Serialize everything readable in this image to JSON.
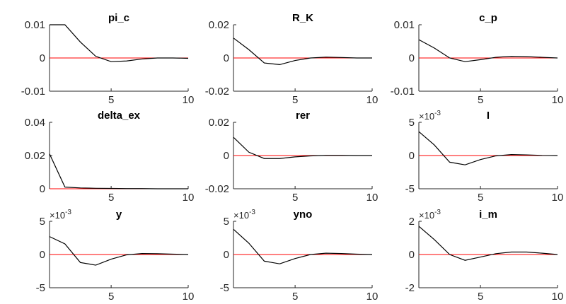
{
  "chart_data": [
    {
      "type": "line",
      "title": "pi_c",
      "x": [
        1,
        2,
        3,
        4,
        5,
        6,
        7,
        8,
        9,
        10
      ],
      "values": [
        0.01,
        0.01,
        0.0048,
        0.0005,
        -0.0011,
        -0.0009,
        -0.0003,
        0.0,
        0.0,
        -0.0001
      ],
      "color": "#000000",
      "zero_line_color": "#ff0000",
      "xlim": [
        1,
        10
      ],
      "xticks": [
        5,
        10
      ],
      "ylim": [
        -0.01,
        0.01
      ],
      "yticks": [
        -0.01,
        0,
        0.01
      ]
    },
    {
      "type": "line",
      "title": "R_K",
      "x": [
        1,
        2,
        3,
        4,
        5,
        6,
        7,
        8,
        9,
        10
      ],
      "values": [
        0.012,
        0.005,
        -0.003,
        -0.004,
        -0.0015,
        0.0,
        0.0005,
        0.0003,
        0.0,
        0.0
      ],
      "color": "#000000",
      "zero_line_color": "#ff0000",
      "xlim": [
        1,
        10
      ],
      "xticks": [
        5,
        10
      ],
      "ylim": [
        -0.02,
        0.02
      ],
      "yticks": [
        -0.02,
        0,
        0.02
      ]
    },
    {
      "type": "line",
      "title": "c_p",
      "x": [
        1,
        2,
        3,
        4,
        5,
        6,
        7,
        8,
        9,
        10
      ],
      "values": [
        0.0055,
        0.003,
        0.0,
        -0.0011,
        -0.0005,
        0.0002,
        0.0005,
        0.0004,
        0.0002,
        0.0
      ],
      "color": "#000000",
      "zero_line_color": "#ff0000",
      "xlim": [
        1,
        10
      ],
      "xticks": [
        5,
        10
      ],
      "ylim": [
        -0.01,
        0.01
      ],
      "yticks": [
        -0.01,
        0,
        0.01
      ]
    },
    {
      "type": "line",
      "title": "delta_ex",
      "x": [
        1,
        2,
        3,
        4,
        5,
        6,
        7,
        8,
        9,
        10
      ],
      "values": [
        0.021,
        0.001,
        0.0005,
        0.0003,
        0.0002,
        0.0001,
        0.0001,
        0.0,
        0.0,
        0.0
      ],
      "color": "#000000",
      "zero_line_color": "#ff0000",
      "xlim": [
        1,
        10
      ],
      "xticks": [
        5,
        10
      ],
      "ylim": [
        0,
        0.04
      ],
      "yticks": [
        0,
        0.02,
        0.04
      ]
    },
    {
      "type": "line",
      "title": "rer",
      "x": [
        1,
        2,
        3,
        4,
        5,
        6,
        7,
        8,
        9,
        10
      ],
      "values": [
        0.011,
        0.002,
        -0.0018,
        -0.0018,
        -0.0008,
        -0.0002,
        0.0001,
        0.0001,
        0.0,
        0.0
      ],
      "color": "#000000",
      "zero_line_color": "#ff0000",
      "xlim": [
        1,
        10
      ],
      "xticks": [
        5,
        10
      ],
      "ylim": [
        -0.02,
        0.02
      ],
      "yticks": [
        -0.02,
        0,
        0.02
      ]
    },
    {
      "type": "line",
      "title": "I",
      "y_multiplier": "×10",
      "y_exponent": "-3",
      "x": [
        1,
        2,
        3,
        4,
        5,
        6,
        7,
        8,
        9,
        10
      ],
      "values": [
        3.6,
        1.6,
        -1.0,
        -1.4,
        -0.6,
        -0.05,
        0.15,
        0.1,
        0.02,
        0.0
      ],
      "color": "#000000",
      "zero_line_color": "#ff0000",
      "xlim": [
        1,
        10
      ],
      "xticks": [
        5,
        10
      ],
      "ylim": [
        -5,
        5
      ],
      "yticks": [
        -5,
        0,
        5
      ]
    },
    {
      "type": "line",
      "title": "y",
      "y_multiplier": "×10",
      "y_exponent": "-3",
      "x": [
        1,
        2,
        3,
        4,
        5,
        6,
        7,
        8,
        9,
        10
      ],
      "values": [
        2.7,
        1.6,
        -1.2,
        -1.6,
        -0.7,
        -0.05,
        0.15,
        0.12,
        0.05,
        0.0
      ],
      "color": "#000000",
      "zero_line_color": "#ff0000",
      "xlim": [
        1,
        10
      ],
      "xticks": [
        5,
        10
      ],
      "ylim": [
        -5,
        5
      ],
      "yticks": [
        -5,
        0,
        5
      ]
    },
    {
      "type": "line",
      "title": "yno",
      "y_multiplier": "×10",
      "y_exponent": "-3",
      "x": [
        1,
        2,
        3,
        4,
        5,
        6,
        7,
        8,
        9,
        10
      ],
      "values": [
        3.8,
        1.7,
        -1.0,
        -1.4,
        -0.6,
        0.0,
        0.2,
        0.15,
        0.05,
        0.0
      ],
      "color": "#000000",
      "zero_line_color": "#ff0000",
      "xlim": [
        1,
        10
      ],
      "xticks": [
        5,
        10
      ],
      "ylim": [
        -5,
        5
      ],
      "yticks": [
        -5,
        0,
        5
      ]
    },
    {
      "type": "line",
      "title": "i_m",
      "y_multiplier": "×10",
      "y_exponent": "-3",
      "x": [
        1,
        2,
        3,
        4,
        5,
        6,
        7,
        8,
        9,
        10
      ],
      "values": [
        1.7,
        0.9,
        0.0,
        -0.35,
        -0.15,
        0.05,
        0.15,
        0.15,
        0.08,
        0.0
      ],
      "color": "#000000",
      "zero_line_color": "#ff0000",
      "xlim": [
        1,
        10
      ],
      "xticks": [
        5,
        10
      ],
      "ylim": [
        -2,
        2
      ],
      "yticks": [
        -2,
        0,
        2
      ]
    }
  ]
}
